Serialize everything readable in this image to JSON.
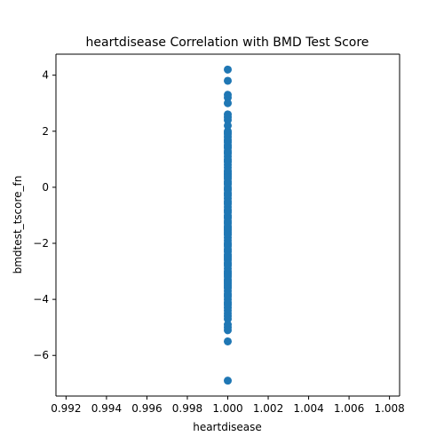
{
  "chart_data": {
    "type": "scatter",
    "title": "heartdisease Correlation with BMD Test Score",
    "xlabel": "heartdisease",
    "ylabel": "bmdtest_tscore_fn",
    "xlim": [
      0.9915,
      1.0085
    ],
    "ylim": [
      -7.45,
      4.75
    ],
    "xticks": [
      0.992,
      0.994,
      0.996,
      0.998,
      1.0,
      1.002,
      1.004,
      1.006,
      1.008
    ],
    "xtick_labels": [
      "0.992",
      "0.994",
      "0.996",
      "0.998",
      "1.000",
      "1.002",
      "1.004",
      "1.006",
      "1.008"
    ],
    "yticks": [
      4,
      2,
      0,
      -2,
      -4,
      -6
    ],
    "ytick_labels": [
      "4",
      "2",
      "0",
      "−2",
      "−4",
      "−6"
    ],
    "grid": false,
    "color": "#1f77b4",
    "x": [
      1.0,
      1.0,
      1.0,
      1.0,
      1.0,
      1.0,
      1.0,
      1.0,
      1.0,
      1.0,
      1.0,
      1.0,
      1.0,
      1.0,
      1.0,
      1.0,
      1.0,
      1.0,
      1.0,
      1.0,
      1.0,
      1.0,
      1.0,
      1.0,
      1.0,
      1.0,
      1.0,
      1.0,
      1.0,
      1.0,
      1.0,
      1.0,
      1.0,
      1.0,
      1.0,
      1.0,
      1.0,
      1.0,
      1.0,
      1.0,
      1.0,
      1.0,
      1.0,
      1.0,
      1.0,
      1.0,
      1.0,
      1.0,
      1.0,
      1.0,
      1.0,
      1.0,
      1.0,
      1.0,
      1.0,
      1.0,
      1.0,
      1.0,
      1.0,
      1.0,
      1.0,
      1.0,
      1.0,
      1.0,
      1.0,
      1.0,
      1.0,
      1.0,
      1.0,
      1.0,
      1.0,
      1.0,
      1.0,
      1.0,
      1.0,
      1.0,
      1.0,
      1.0,
      1.0,
      1.0,
      1.0,
      1.0,
      1.0,
      1.0,
      1.0,
      1.0,
      1.0,
      1.0,
      1.0,
      1.0,
      1.0,
      1.0,
      1.0,
      1.0,
      1.0,
      1.0,
      1.0,
      1.0,
      1.0,
      1.0,
      1.0,
      1.0,
      1.0,
      1.0,
      1.0,
      1.0,
      1.0,
      1.0,
      1.0,
      1.0,
      1.0,
      1.0
    ],
    "y": [
      4.2,
      3.8,
      3.3,
      3.2,
      3.0,
      2.6,
      2.5,
      2.4,
      2.2,
      2.0,
      1.9,
      1.8,
      1.7,
      1.6,
      1.5,
      1.4,
      1.3,
      1.2,
      1.1,
      1.0,
      0.9,
      0.8,
      0.7,
      0.6,
      0.5,
      0.4,
      0.3,
      0.2,
      0.1,
      0.0,
      -0.1,
      -0.2,
      -0.3,
      -0.4,
      -0.5,
      -0.6,
      -0.7,
      -0.8,
      -0.9,
      -1.0,
      -1.1,
      -1.2,
      -1.3,
      -1.4,
      -1.5,
      -1.6,
      -1.7,
      -1.8,
      -1.9,
      -2.0,
      -2.1,
      -2.2,
      -2.3,
      -2.4,
      -2.5,
      -2.6,
      -2.7,
      -2.8,
      -2.9,
      -3.0,
      -3.1,
      -3.2,
      -3.3,
      -3.4,
      -3.5,
      -3.6,
      -3.7,
      -3.8,
      -3.9,
      -4.0,
      -4.1,
      -4.2,
      -4.3,
      -4.4,
      -4.5,
      -4.6,
      -4.7,
      -4.9,
      -5.0,
      -5.1,
      -5.5,
      -6.9,
      1.95,
      1.45,
      0.95,
      0.45,
      -0.05,
      -0.55,
      -1.05,
      -1.55,
      -2.05,
      -2.55,
      -3.05,
      -3.55,
      -3.85,
      -4.15,
      -0.25,
      0.15,
      0.55,
      1.25,
      1.65,
      -1.25,
      -1.65,
      -2.25,
      -2.75,
      -3.15,
      -3.45,
      -0.85,
      0.35,
      -1.45,
      -2.45,
      -3.35
    ]
  }
}
